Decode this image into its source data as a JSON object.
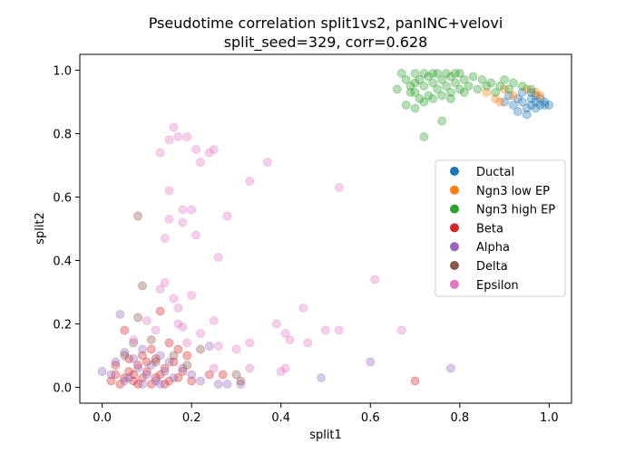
{
  "chart_data": {
    "type": "scatter",
    "title_line1": "Pseudotime correlation split1vs2, panINC+velovi",
    "title_line2": "split_seed=329, corr=0.628",
    "xlabel": "split1",
    "ylabel": "split2",
    "xlim": [
      -0.05,
      1.05
    ],
    "ylim": [
      -0.05,
      1.05
    ],
    "xticks": [
      0.0,
      0.2,
      0.4,
      0.6,
      0.8,
      1.0
    ],
    "yticks": [
      0.0,
      0.2,
      0.4,
      0.6,
      0.8,
      1.0
    ],
    "xtick_labels": [
      "0.0",
      "0.2",
      "0.4",
      "0.6",
      "0.8",
      "1.0"
    ],
    "ytick_labels": [
      "0.0",
      "0.2",
      "0.4",
      "0.6",
      "0.8",
      "1.0"
    ],
    "grid": false,
    "legend_position": "center-right",
    "marker_alpha": 0.35,
    "series": [
      {
        "name": "Ductal",
        "color": "#1f77b4",
        "points": [
          [
            0.9,
            0.9
          ],
          [
            0.92,
            0.89
          ],
          [
            0.93,
            0.91
          ],
          [
            0.94,
            0.9
          ],
          [
            0.95,
            0.88
          ],
          [
            0.95,
            0.86
          ],
          [
            0.96,
            0.89
          ],
          [
            0.96,
            0.91
          ],
          [
            0.97,
            0.9
          ],
          [
            0.97,
            0.88
          ],
          [
            0.98,
            0.89
          ],
          [
            0.98,
            0.91
          ],
          [
            0.99,
            0.9
          ],
          [
            0.99,
            0.89
          ],
          [
            1.0,
            0.89
          ],
          [
            0.94,
            0.93
          ],
          [
            0.96,
            0.93
          ],
          [
            0.93,
            0.87
          ],
          [
            0.97,
            0.92
          ],
          [
            0.91,
            0.92
          ]
        ]
      },
      {
        "name": "Ngn3 low EP",
        "color": "#ff7f0e",
        "points": [
          [
            0.86,
            0.93
          ],
          [
            0.88,
            0.91
          ],
          [
            0.9,
            0.94
          ],
          [
            0.92,
            0.92
          ],
          [
            0.95,
            0.94
          ],
          [
            0.97,
            0.93
          ],
          [
            0.98,
            0.92
          ],
          [
            0.89,
            0.9
          ]
        ]
      },
      {
        "name": "Ngn3 high EP",
        "color": "#2ca02c",
        "points": [
          [
            0.67,
            0.99
          ],
          [
            0.68,
            0.97
          ],
          [
            0.69,
            0.95
          ],
          [
            0.7,
            0.99
          ],
          [
            0.7,
            0.93
          ],
          [
            0.71,
            0.97
          ],
          [
            0.72,
            0.99
          ],
          [
            0.72,
            0.95
          ],
          [
            0.73,
            0.98
          ],
          [
            0.73,
            0.92
          ],
          [
            0.74,
            0.96
          ],
          [
            0.75,
            0.99
          ],
          [
            0.75,
            0.94
          ],
          [
            0.76,
            0.97
          ],
          [
            0.77,
            0.99
          ],
          [
            0.77,
            0.95
          ],
          [
            0.78,
            0.98
          ],
          [
            0.78,
            0.93
          ],
          [
            0.79,
            0.96
          ],
          [
            0.8,
            0.99
          ],
          [
            0.8,
            0.94
          ],
          [
            0.81,
            0.97
          ],
          [
            0.82,
            0.95
          ],
          [
            0.83,
            0.98
          ],
          [
            0.84,
            0.94
          ],
          [
            0.85,
            0.97
          ],
          [
            0.86,
            0.95
          ],
          [
            0.87,
            0.96
          ],
          [
            0.88,
            0.93
          ],
          [
            0.89,
            0.95
          ],
          [
            0.9,
            0.97
          ],
          [
            0.91,
            0.94
          ],
          [
            0.92,
            0.96
          ],
          [
            0.94,
            0.95
          ],
          [
            0.96,
            0.94
          ],
          [
            0.68,
            0.89
          ],
          [
            0.7,
            0.88
          ],
          [
            0.72,
            0.9
          ],
          [
            0.71,
            0.91
          ],
          [
            0.69,
            0.93
          ],
          [
            0.72,
            0.79
          ],
          [
            0.76,
            0.84
          ],
          [
            0.74,
            0.91
          ],
          [
            0.66,
            0.94
          ],
          [
            0.78,
            0.91
          ],
          [
            0.7,
            0.96
          ],
          [
            0.74,
            0.99
          ],
          [
            0.76,
            0.92
          ],
          [
            0.79,
            0.99
          ],
          [
            0.81,
            0.93
          ]
        ]
      },
      {
        "name": "Beta",
        "color": "#d62728",
        "points": [
          [
            0.02,
            0.02
          ],
          [
            0.03,
            0.04
          ],
          [
            0.04,
            0.01
          ],
          [
            0.05,
            0.03
          ],
          [
            0.06,
            0.05
          ],
          [
            0.07,
            0.02
          ],
          [
            0.08,
            0.07
          ],
          [
            0.09,
            0.03
          ],
          [
            0.1,
            0.05
          ],
          [
            0.11,
            0.01
          ],
          [
            0.12,
            0.09
          ],
          [
            0.13,
            0.04
          ],
          [
            0.14,
            0.06
          ],
          [
            0.15,
            0.02
          ],
          [
            0.16,
            0.08
          ],
          [
            0.17,
            0.03
          ],
          [
            0.18,
            0.05
          ],
          [
            0.19,
            0.1
          ],
          [
            0.2,
            0.02
          ],
          [
            0.05,
            0.18
          ],
          [
            0.09,
            0.1
          ],
          [
            0.13,
            0.24
          ],
          [
            0.15,
            0.14
          ],
          [
            0.11,
            0.12
          ],
          [
            0.08,
            0.01
          ],
          [
            0.06,
            0.09
          ],
          [
            0.03,
            0.07
          ],
          [
            0.24,
            0.04
          ],
          [
            0.27,
            0.04
          ],
          [
            0.7,
            0.02
          ],
          [
            0.17,
            0.12
          ],
          [
            0.14,
            0.01
          ],
          [
            0.12,
            0.03
          ],
          [
            0.1,
            0.08
          ],
          [
            0.07,
            0.04
          ]
        ]
      },
      {
        "name": "Alpha",
        "color": "#9467bd",
        "points": [
          [
            0.0,
            0.05
          ],
          [
            0.02,
            0.04
          ],
          [
            0.03,
            0.08
          ],
          [
            0.04,
            0.23
          ],
          [
            0.05,
            0.11
          ],
          [
            0.06,
            0.03
          ],
          [
            0.07,
            0.09
          ],
          [
            0.08,
            0.06
          ],
          [
            0.09,
            0.12
          ],
          [
            0.1,
            0.04
          ],
          [
            0.11,
            0.07
          ],
          [
            0.12,
            0.02
          ],
          [
            0.13,
            0.1
          ],
          [
            0.14,
            0.05
          ],
          [
            0.15,
            0.08
          ],
          [
            0.16,
            0.03
          ],
          [
            0.18,
            0.06
          ],
          [
            0.2,
            0.04
          ],
          [
            0.22,
            0.02
          ],
          [
            0.24,
            0.13
          ],
          [
            0.26,
            0.01
          ],
          [
            0.28,
            0.01
          ],
          [
            0.31,
            0.01
          ],
          [
            0.49,
            0.03
          ],
          [
            0.6,
            0.08
          ],
          [
            0.78,
            0.06
          ],
          [
            0.05,
            0.02
          ],
          [
            0.09,
            0.01
          ],
          [
            0.13,
            0.01
          ]
        ]
      },
      {
        "name": "Delta",
        "color": "#8c564b",
        "points": [
          [
            0.05,
            0.1
          ],
          [
            0.07,
            0.14
          ],
          [
            0.08,
            0.54
          ],
          [
            0.08,
            0.22
          ],
          [
            0.09,
            0.32
          ],
          [
            0.11,
            0.15
          ],
          [
            0.12,
            0.08
          ],
          [
            0.16,
            0.1
          ],
          [
            0.19,
            0.07
          ],
          [
            0.22,
            0.12
          ],
          [
            0.3,
            0.04
          ],
          [
            0.31,
            0.02
          ]
        ]
      },
      {
        "name": "Epsilon",
        "color": "#e377c2",
        "points": [
          [
            0.07,
            0.15
          ],
          [
            0.1,
            0.21
          ],
          [
            0.12,
            0.18
          ],
          [
            0.13,
            0.74
          ],
          [
            0.13,
            0.31
          ],
          [
            0.14,
            0.47
          ],
          [
            0.14,
            0.33
          ],
          [
            0.15,
            0.62
          ],
          [
            0.15,
            0.53
          ],
          [
            0.15,
            0.78
          ],
          [
            0.16,
            0.82
          ],
          [
            0.16,
            0.28
          ],
          [
            0.17,
            0.79
          ],
          [
            0.17,
            0.25
          ],
          [
            0.18,
            0.52
          ],
          [
            0.18,
            0.56
          ],
          [
            0.18,
            0.19
          ],
          [
            0.19,
            0.79
          ],
          [
            0.2,
            0.56
          ],
          [
            0.2,
            0.29
          ],
          [
            0.21,
            0.48
          ],
          [
            0.21,
            0.75
          ],
          [
            0.22,
            0.71
          ],
          [
            0.22,
            0.17
          ],
          [
            0.24,
            0.74
          ],
          [
            0.25,
            0.21
          ],
          [
            0.25,
            0.75
          ],
          [
            0.26,
            0.41
          ],
          [
            0.26,
            0.13
          ],
          [
            0.28,
            0.54
          ],
          [
            0.3,
            0.12
          ],
          [
            0.33,
            0.14
          ],
          [
            0.33,
            0.65
          ],
          [
            0.37,
            0.71
          ],
          [
            0.39,
            0.2
          ],
          [
            0.41,
            0.17
          ],
          [
            0.42,
            0.15
          ],
          [
            0.45,
            0.25
          ],
          [
            0.46,
            0.14
          ],
          [
            0.5,
            0.18
          ],
          [
            0.53,
            0.63
          ],
          [
            0.53,
            0.18
          ],
          [
            0.61,
            0.34
          ],
          [
            0.67,
            0.18
          ],
          [
            0.4,
            0.05
          ],
          [
            0.41,
            0.06
          ],
          [
            0.33,
            0.06
          ],
          [
            0.25,
            0.06
          ],
          [
            0.19,
            0.14
          ],
          [
            0.17,
            0.2
          ]
        ]
      }
    ]
  }
}
